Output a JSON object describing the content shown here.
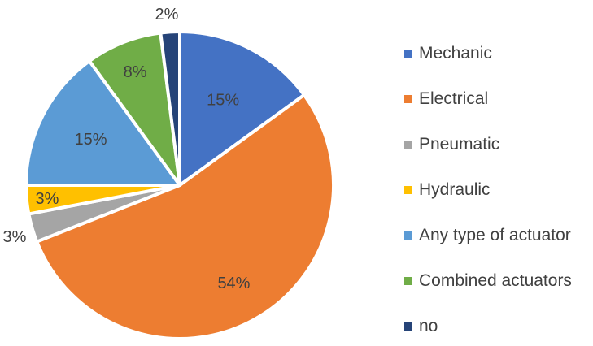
{
  "chart_data": {
    "type": "pie",
    "legend_position": "right",
    "slices": [
      {
        "name": "Mechanic",
        "value": 15,
        "label": "15%",
        "color": "#4472C4"
      },
      {
        "name": "Electrical",
        "value": 54,
        "label": "54%",
        "color": "#ED7D31"
      },
      {
        "name": "Pneumatic",
        "value": 3,
        "label": "3%",
        "color": "#A5A5A5"
      },
      {
        "name": "Hydraulic",
        "value": 3,
        "label": "3%",
        "color": "#FFC000"
      },
      {
        "name": "Any type of actuator",
        "value": 15,
        "label": "15%",
        "color": "#5B9BD5"
      },
      {
        "name": "Combined actuators",
        "value": 8,
        "label": "8%",
        "color": "#70AD47"
      },
      {
        "name": "no",
        "value": 2,
        "label": "2%",
        "color": "#264478"
      }
    ]
  }
}
